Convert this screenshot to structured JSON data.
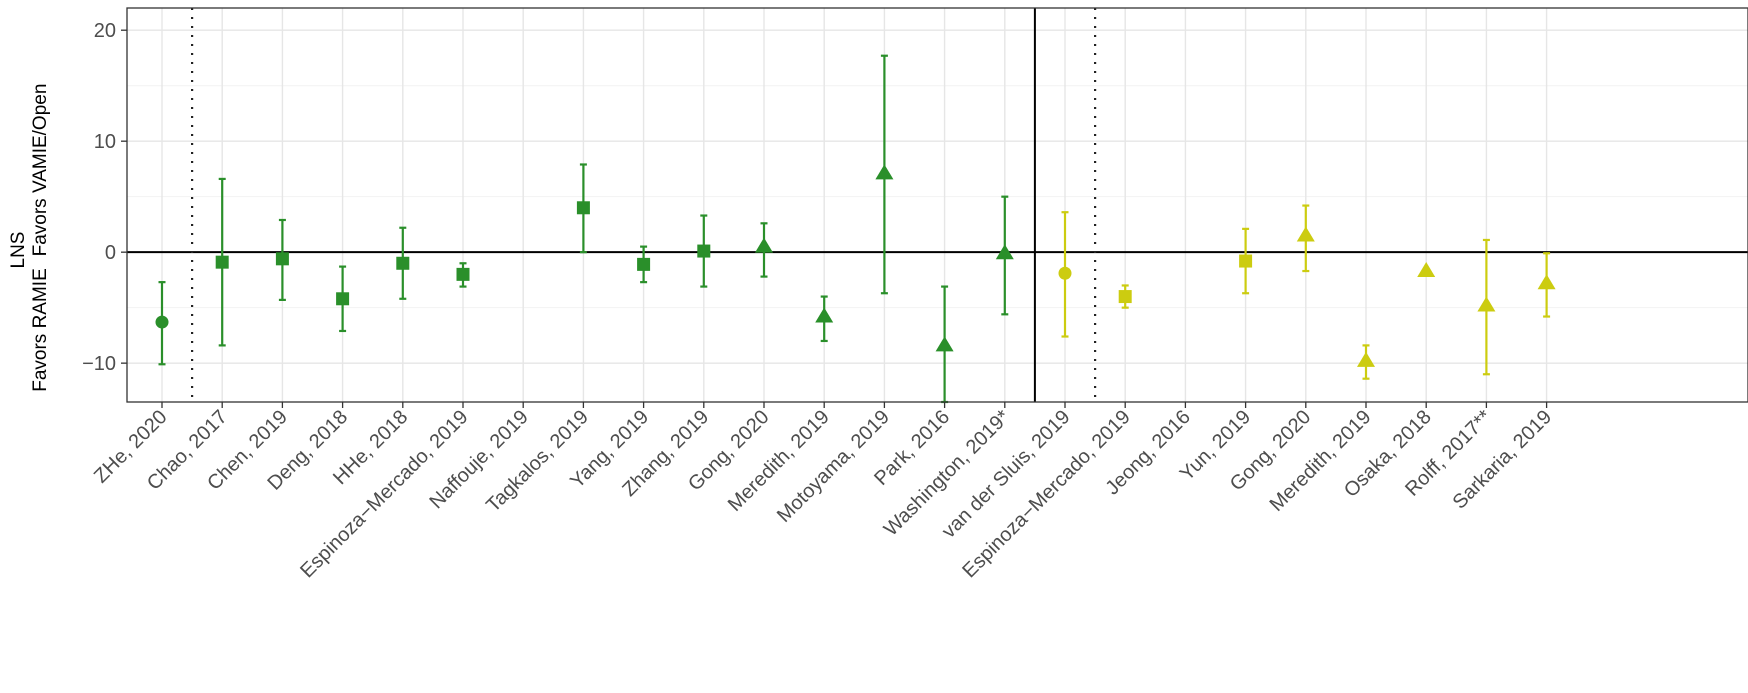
{
  "chart_data": {
    "type": "scatter",
    "ylabel": {
      "lines": [
        "LNS",
        "Favors VAMIE/Open",
        "Favors RAMIE"
      ]
    },
    "ylim": [
      -13.5,
      22
    ],
    "y_ticks": [
      20,
      10,
      0,
      -10
    ],
    "y_tick_labels": [
      "20",
      "10",
      "0",
      "−10"
    ],
    "grid": true,
    "categories": [
      "ZHe, 2020",
      "Chao, 2017",
      "Chen, 2019",
      "Deng, 2018",
      "HHe, 2018",
      "Espinoza−Mercado, 2019",
      "Naffouje, 2019",
      "Tagkalos, 2019",
      "Yang, 2019",
      "Zhang, 2019",
      "Gong, 2020",
      "Meredith, 2019",
      "Motoyama, 2019",
      "Park, 2016",
      "Washington, 2019*",
      "van der Sluis, 2019",
      "Espinoza−Mercado, 2019",
      "Jeong, 2016",
      "Yun, 2019",
      "Gong, 2020",
      "Meredith, 2019",
      "Osaka, 2018",
      "Rolff, 2017**",
      "Sarkaria, 2019"
    ],
    "points": [
      {
        "category_index": 0,
        "y": -6.3,
        "lo": -10.1,
        "hi": -2.7,
        "shape": "circle",
        "group": "green"
      },
      {
        "category_index": 1,
        "y": -0.9,
        "lo": -8.4,
        "hi": 6.6,
        "shape": "square",
        "group": "green"
      },
      {
        "category_index": 2,
        "y": -0.6,
        "lo": -4.3,
        "hi": 2.9,
        "shape": "square",
        "group": "green"
      },
      {
        "category_index": 3,
        "y": -4.2,
        "lo": -7.1,
        "hi": -1.3,
        "shape": "square",
        "group": "green"
      },
      {
        "category_index": 4,
        "y": -1.0,
        "lo": -4.2,
        "hi": 2.2,
        "shape": "square",
        "group": "green"
      },
      {
        "category_index": 5,
        "y": -2.0,
        "lo": -3.1,
        "hi": -1.0,
        "shape": "square",
        "group": "green"
      },
      {
        "category_index": 7,
        "y": 4.0,
        "lo": 0.0,
        "hi": 7.9,
        "shape": "square",
        "group": "green"
      },
      {
        "category_index": 8,
        "y": -1.1,
        "lo": -2.7,
        "hi": 0.5,
        "shape": "square",
        "group": "green"
      },
      {
        "category_index": 9,
        "y": 0.1,
        "lo": -3.1,
        "hi": 3.3,
        "shape": "square",
        "group": "green"
      },
      {
        "category_index": 10,
        "y": 0.5,
        "lo": -2.2,
        "hi": 2.6,
        "shape": "triangle",
        "group": "green"
      },
      {
        "category_index": 11,
        "y": -5.8,
        "lo": -8.0,
        "hi": -4.0,
        "shape": "triangle",
        "group": "green"
      },
      {
        "category_index": 12,
        "y": 7.1,
        "lo": -3.7,
        "hi": 17.7,
        "shape": "triangle",
        "group": "green"
      },
      {
        "category_index": 13,
        "y": -8.4,
        "lo": -13.5,
        "hi": -3.1,
        "shape": "triangle",
        "group": "green"
      },
      {
        "category_index": 14,
        "y": -0.1,
        "lo": -5.6,
        "hi": 5.0,
        "shape": "triangle",
        "group": "green"
      },
      {
        "category_index": 15,
        "y": -1.9,
        "lo": -7.6,
        "hi": 3.6,
        "shape": "circle",
        "group": "yellow"
      },
      {
        "category_index": 16,
        "y": -4.0,
        "lo": -5.0,
        "hi": -3.0,
        "shape": "square",
        "group": "yellow"
      },
      {
        "category_index": 18,
        "y": -0.8,
        "lo": -3.7,
        "hi": 2.1,
        "shape": "square",
        "group": "yellow"
      },
      {
        "category_index": 19,
        "y": 1.5,
        "lo": -1.7,
        "hi": 4.2,
        "shape": "triangle",
        "group": "yellow"
      },
      {
        "category_index": 20,
        "y": -9.8,
        "lo": -11.4,
        "hi": -8.4,
        "shape": "triangle",
        "group": "yellow"
      },
      {
        "category_index": 21,
        "y": -1.7,
        "lo": null,
        "hi": null,
        "shape": "triangle",
        "group": "yellow"
      },
      {
        "category_index": 22,
        "y": -4.8,
        "lo": -11.0,
        "hi": 1.1,
        "shape": "triangle",
        "group": "yellow"
      },
      {
        "category_index": 23,
        "y": -2.8,
        "lo": -5.8,
        "hi": -0.1,
        "shape": "triangle",
        "group": "yellow"
      }
    ],
    "reference_lines": {
      "horizontal_y": 0,
      "solid_vertical_between": [
        14,
        15
      ],
      "dotted_vertical_between": [
        [
          0,
          1
        ],
        [
          15,
          16
        ]
      ]
    },
    "colors": {
      "green": "#2a8f2a",
      "yellow": "#cccc10",
      "grid_major": "#e6e6e6",
      "grid_minor": "#f2f2f2",
      "text": "#4d4d4d"
    }
  }
}
